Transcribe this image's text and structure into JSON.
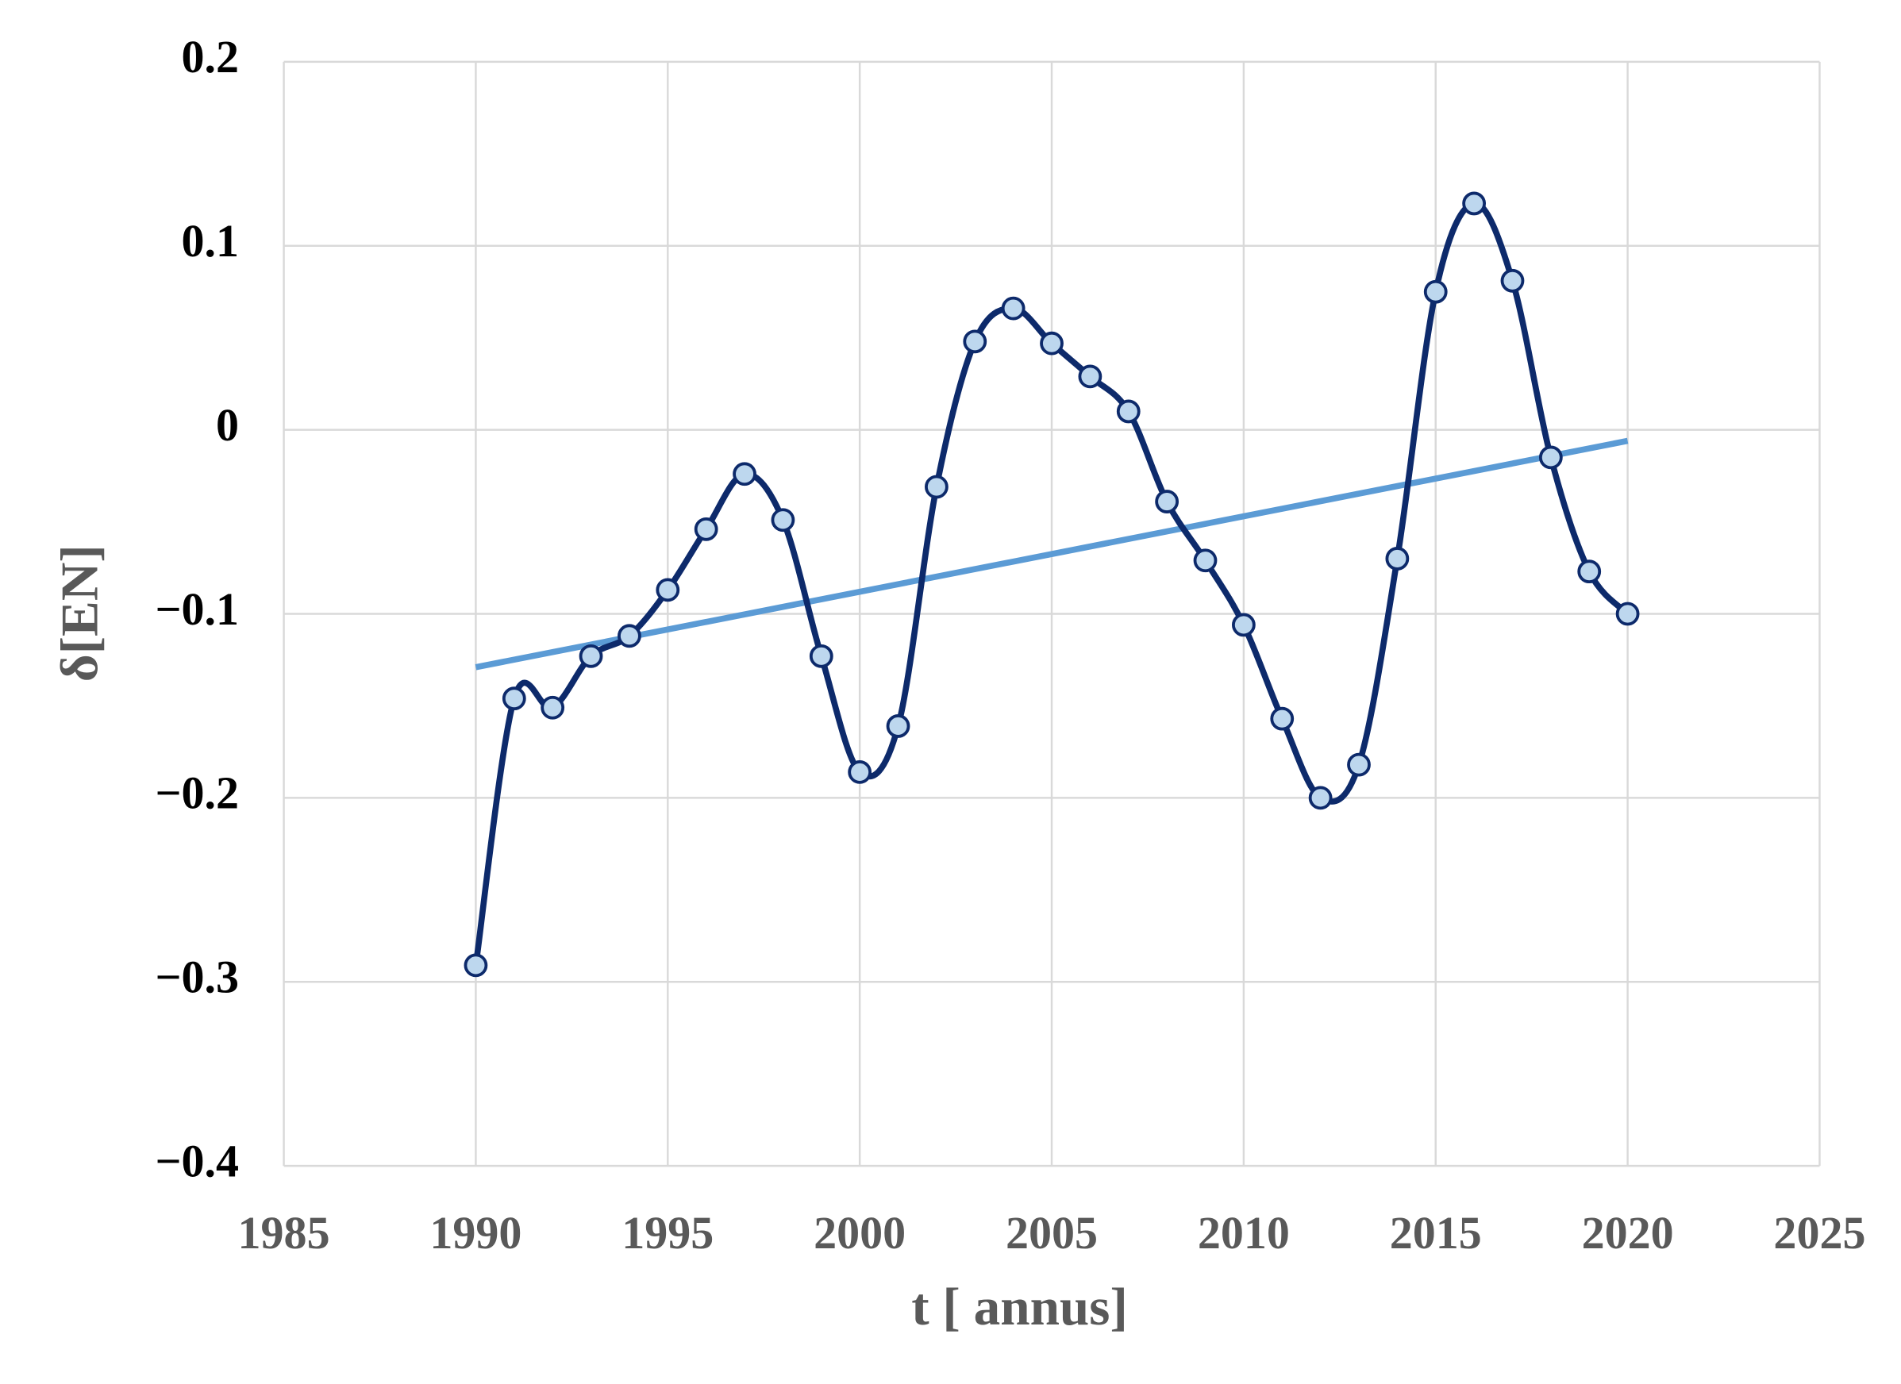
{
  "chart_data": {
    "type": "line",
    "x_label": "t [ annus]",
    "y_label": "δ[EN]",
    "xlim": [
      1985,
      2025
    ],
    "ylim": [
      -0.4,
      0.2
    ],
    "xticks": [
      1985,
      1990,
      1995,
      2000,
      2005,
      2010,
      2015,
      2020,
      2025
    ],
    "yticks": [
      {
        "value": -0.4,
        "label": "−0.4"
      },
      {
        "value": -0.3,
        "label": "−0.3"
      },
      {
        "value": -0.2,
        "label": "−0.2"
      },
      {
        "value": -0.1,
        "label": "−0.1"
      },
      0,
      0.1,
      0.2
    ],
    "grid": true,
    "series": [
      {
        "color": "#0d2a6b",
        "smooth": true,
        "markers": true,
        "x": [
          1990,
          1991,
          1992,
          1993,
          1994,
          1995,
          1996,
          1997,
          1998,
          1999,
          2000,
          2001,
          2002,
          2003,
          2004,
          2005,
          2006,
          2007,
          2008,
          2009,
          2010,
          2011,
          2012,
          2013,
          2014,
          2015,
          2016,
          2017,
          2018,
          2019,
          2020
        ],
        "values": [
          -0.291,
          -0.146,
          -0.151,
          -0.123,
          -0.112,
          -0.087,
          -0.054,
          -0.024,
          -0.049,
          -0.123,
          -0.186,
          -0.161,
          -0.031,
          0.048,
          0.066,
          0.047,
          0.029,
          0.01,
          -0.039,
          -0.071,
          -0.106,
          -0.157,
          -0.2,
          -0.182,
          -0.07,
          0.075,
          0.123,
          0.081,
          -0.015,
          -0.077,
          -0.1
        ]
      },
      {
        "color": "#5b9bd5",
        "smooth": false,
        "markers": false,
        "x": [
          1990,
          2020
        ],
        "values": [
          -0.129,
          -0.006
        ]
      }
    ]
  }
}
